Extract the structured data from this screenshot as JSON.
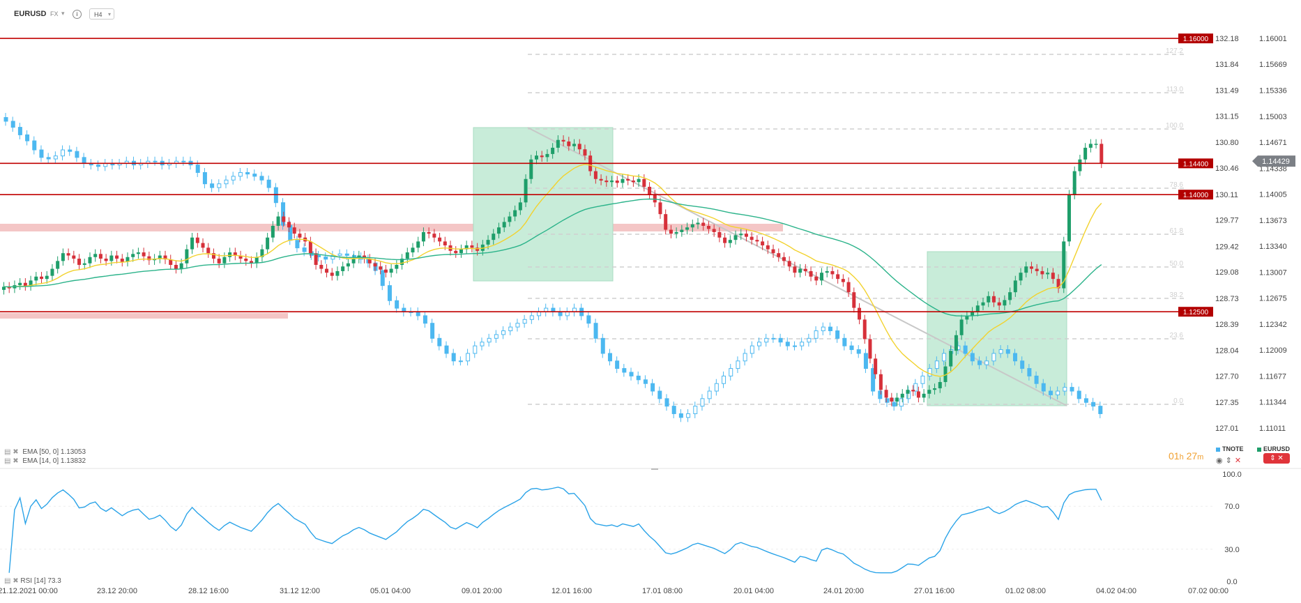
{
  "header": {
    "symbol": "EURUSD",
    "market": "FX",
    "timeframe": "H4"
  },
  "indicators": {
    "ema50": {
      "label": "EMA",
      "params": "[50, 0]",
      "value": "1.13053",
      "color": "#2bb38a"
    },
    "ema14": {
      "label": "EMA",
      "params": "[14, 0]",
      "value": "1.13832",
      "color": "#f2d22e"
    },
    "rsi": {
      "label": "RSI",
      "params": "[14]",
      "value": "73.3",
      "color": "#2aa3e8"
    }
  },
  "countdown": {
    "hours": "01",
    "h": "h",
    "minutes": "27",
    "m": "m"
  },
  "legend": {
    "series1": "TNOTE",
    "series2": "EURUSD",
    "series1_color": "#46b0ee",
    "series2_color": "#1e9e6a"
  },
  "colors": {
    "bull": "#1e9e6a",
    "bear": "#d6303a",
    "tnote": "#4cb8f0",
    "level": "#c00000",
    "zone": "#f4c6c6",
    "box": "#c8ecd9"
  },
  "chart_data": {
    "type": "candlestick",
    "xlabel": "",
    "ylabel": "",
    "x_ticks": [
      "21.12.2021 00:00",
      "23.12 20:00",
      "28.12 16:00",
      "31.12 12:00",
      "05.01 04:00",
      "09.01 20:00",
      "12.01 16:00",
      "17.01 08:00",
      "20.01 04:00",
      "24.01 20:00",
      "27.01 16:00",
      "01.02 08:00",
      "04.02 04:00",
      "07.02 00:00"
    ],
    "y_ticks_price": [
      "1.16001",
      "1.15669",
      "1.15336",
      "1.15003",
      "1.14671",
      "1.14338",
      "1.14005",
      "1.13673",
      "1.13340",
      "1.13007",
      "1.12675",
      "1.12342",
      "1.12009",
      "1.11677",
      "1.11344",
      "1.11011"
    ],
    "y_ticks_tnote": [
      "132.18",
      "131.84",
      "131.49",
      "131.15",
      "130.80",
      "130.46",
      "130.11",
      "129.77",
      "129.42",
      "129.08",
      "128.73",
      "128.39",
      "128.04",
      "127.70",
      "127.35",
      "127.01"
    ],
    "price_range": [
      1.11011,
      1.16001
    ],
    "current_price": "1.14429",
    "levels": [
      "1.16000",
      "1.14400",
      "1.14000",
      "1.12500"
    ],
    "fib_levels": [
      "127.2",
      "113.0",
      "100.0",
      "78.6",
      "61.8",
      "50.0",
      "38.2",
      "23.6",
      "0.0"
    ],
    "rsi_ticks": [
      "100.0",
      "70.0",
      "30.0",
      "0.0"
    ],
    "eurusd_closes": [
      1.1282,
      1.128,
      1.1284,
      1.1287,
      1.1283,
      1.129,
      1.1295,
      1.1292,
      1.1296,
      1.1305,
      1.1315,
      1.1325,
      1.1322,
      1.1318,
      1.131,
      1.1312,
      1.132,
      1.1324,
      1.1318,
      1.1315,
      1.1322,
      1.1318,
      1.1314,
      1.132,
      1.1324,
      1.1326,
      1.1321,
      1.1316,
      1.1318,
      1.1322,
      1.1317,
      1.131,
      1.1305,
      1.1312,
      1.133,
      1.1345,
      1.1338,
      1.1332,
      1.1325,
      1.1318,
      1.1312,
      1.132,
      1.1326,
      1.1322,
      1.1318,
      1.1315,
      1.1312,
      1.132,
      1.133,
      1.1345,
      1.136,
      1.1372,
      1.1365,
      1.1358,
      1.135,
      1.1345,
      1.134,
      1.1325,
      1.131,
      1.1305,
      1.13,
      1.1296,
      1.1302,
      1.1308,
      1.1312,
      1.1318,
      1.1322,
      1.1318,
      1.1312,
      1.1308,
      1.1304,
      1.13,
      1.1305,
      1.131,
      1.1318,
      1.1326,
      1.1332,
      1.134,
      1.1352,
      1.135,
      1.1345,
      1.134,
      1.1335,
      1.1328,
      1.1325,
      1.133,
      1.1335,
      1.1332,
      1.1328,
      1.1336,
      1.1342,
      1.135,
      1.1358,
      1.1365,
      1.1372,
      1.138,
      1.139,
      1.142,
      1.1445,
      1.145,
      1.1448,
      1.1452,
      1.146,
      1.147,
      1.1468,
      1.1462,
      1.1465,
      1.1458,
      1.145,
      1.143,
      1.142,
      1.1418,
      1.1416,
      1.1418,
      1.1415,
      1.142,
      1.1418,
      1.1416,
      1.142,
      1.141,
      1.14,
      1.139,
      1.1375,
      1.1355,
      1.135,
      1.1352,
      1.1355,
      1.1358,
      1.1362,
      1.1364,
      1.136,
      1.1356,
      1.1352,
      1.1345,
      1.1338,
      1.1342,
      1.1348,
      1.135,
      1.1346,
      1.1342,
      1.134,
      1.1335,
      1.133,
      1.1325,
      1.132,
      1.1315,
      1.1308,
      1.13,
      1.1305,
      1.1302,
      1.1295,
      1.129,
      1.13,
      1.1302,
      1.1298,
      1.1292,
      1.1288,
      1.1275,
      1.1255,
      1.124,
      1.1215,
      1.119,
      1.117,
      1.115,
      1.114,
      1.1135,
      1.114,
      1.1145,
      1.115,
      1.1148,
      1.114,
      1.1145,
      1.115,
      1.1152,
      1.116,
      1.118,
      1.12,
      1.122,
      1.124,
      1.1245,
      1.125,
      1.1258,
      1.1262,
      1.127,
      1.1262,
      1.1258,
      1.1265,
      1.1275,
      1.129,
      1.13,
      1.1308,
      1.1305,
      1.1302,
      1.1298,
      1.13,
      1.1292,
      1.128,
      1.134,
      1.14,
      1.143,
      1.1445,
      1.146,
      1.1465,
      1.1465,
      1.144
    ],
    "tnote_closes": [
      131.08,
      131.0,
      130.9,
      130.82,
      130.7,
      130.6,
      130.58,
      130.62,
      130.7,
      130.68,
      130.6,
      130.52,
      130.5,
      130.48,
      130.52,
      130.5,
      130.52,
      130.55,
      130.5,
      130.52,
      130.55,
      130.55,
      130.5,
      130.52,
      130.55,
      130.55,
      130.5,
      130.4,
      130.25,
      130.2,
      130.25,
      130.3,
      130.35,
      130.4,
      130.38,
      130.35,
      130.3,
      130.2,
      130.0,
      129.7,
      129.5,
      129.4,
      129.35,
      129.3,
      129.28,
      129.25,
      129.3,
      129.32,
      129.3,
      129.28,
      129.25,
      129.2,
      129.1,
      128.9,
      128.7,
      128.6,
      128.55,
      128.55,
      128.5,
      128.4,
      128.2,
      128.1,
      128.0,
      127.9,
      127.9,
      128.0,
      128.1,
      128.15,
      128.2,
      128.25,
      128.3,
      128.35,
      128.4,
      128.45,
      128.5,
      128.55,
      128.6,
      128.55,
      128.5,
      128.55,
      128.6,
      128.5,
      128.4,
      128.2,
      128.0,
      127.9,
      127.8,
      127.75,
      127.7,
      127.65,
      127.6,
      127.5,
      127.4,
      127.3,
      127.2,
      127.15,
      127.2,
      127.3,
      127.4,
      127.5,
      127.6,
      127.7,
      127.8,
      127.9,
      128.0,
      128.1,
      128.15,
      128.2,
      128.2,
      128.15,
      128.1,
      128.1,
      128.15,
      128.2,
      128.3,
      128.35,
      128.3,
      128.2,
      128.1,
      128.05,
      128.0,
      127.8,
      127.5,
      127.4,
      127.35,
      127.3,
      127.4,
      127.5,
      127.6,
      127.7,
      127.8,
      127.9,
      128.0,
      128.05,
      128.1,
      128.0,
      127.9,
      127.85,
      127.9,
      128.0,
      128.05,
      128.0,
      127.9,
      127.8,
      127.7,
      127.6,
      127.5,
      127.45,
      127.5,
      127.55,
      127.5,
      127.4,
      127.35,
      127.3,
      127.2
    ]
  }
}
